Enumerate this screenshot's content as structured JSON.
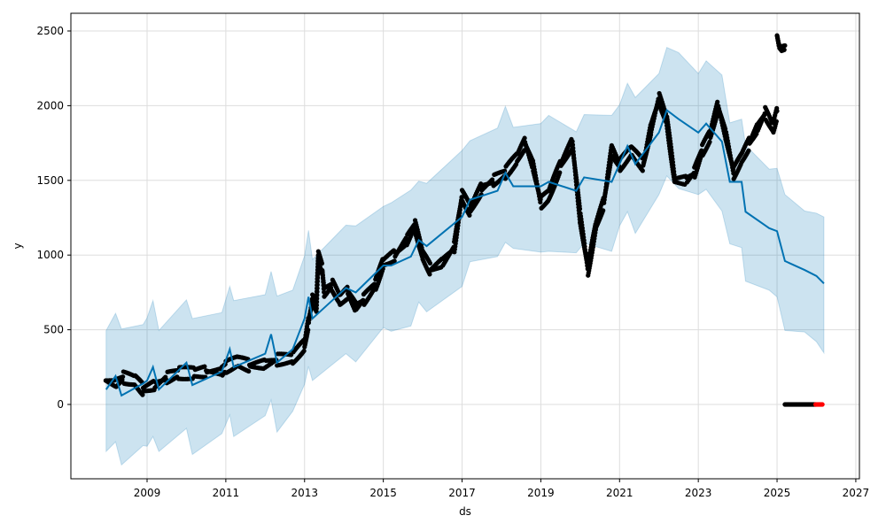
{
  "chart_data": {
    "type": "line",
    "title": "",
    "xlabel": "ds",
    "ylabel": "y",
    "xlim": [
      2007.3,
      2027.2
    ],
    "ylim": [
      -490,
      2600
    ],
    "xticks": [
      "2009",
      "2011",
      "2013",
      "2015",
      "2017",
      "2019",
      "2021",
      "2023",
      "2025",
      "2027"
    ],
    "yticks": [
      "0",
      "500",
      "1000",
      "1500",
      "2000",
      "2500"
    ],
    "grid": true,
    "colors": {
      "forecast": "#0072B2",
      "band": "#0072B2",
      "actual": "#000000",
      "future_actual": "#ff0000"
    },
    "forecast": [
      [
        2007.96,
        100
      ],
      [
        2008.2,
        190
      ],
      [
        2008.35,
        60
      ],
      [
        2008.9,
        140
      ],
      [
        2009.0,
        160
      ],
      [
        2009.15,
        250
      ],
      [
        2009.3,
        100
      ],
      [
        2010.0,
        280
      ],
      [
        2010.15,
        130
      ],
      [
        2010.9,
        220
      ],
      [
        2011.1,
        370
      ],
      [
        2011.2,
        250
      ],
      [
        2012.0,
        340
      ],
      [
        2012.15,
        470
      ],
      [
        2012.3,
        280
      ],
      [
        2012.7,
        370
      ],
      [
        2013.0,
        575
      ],
      [
        2013.1,
        720
      ],
      [
        2013.2,
        575
      ],
      [
        2014.05,
        780
      ],
      [
        2014.3,
        750
      ],
      [
        2015.0,
        930
      ],
      [
        2015.2,
        930
      ],
      [
        2015.7,
        990
      ],
      [
        2015.9,
        1100
      ],
      [
        2016.1,
        1060
      ],
      [
        2017.0,
        1255
      ],
      [
        2017.2,
        1370
      ],
      [
        2017.9,
        1430
      ],
      [
        2018.1,
        1550
      ],
      [
        2018.3,
        1460
      ],
      [
        2019.0,
        1460
      ],
      [
        2019.2,
        1490
      ],
      [
        2019.9,
        1430
      ],
      [
        2020.1,
        1520
      ],
      [
        2020.8,
        1490
      ],
      [
        2021.0,
        1610
      ],
      [
        2021.2,
        1730
      ],
      [
        2021.4,
        1610
      ],
      [
        2022.0,
        1820
      ],
      [
        2022.2,
        1970
      ],
      [
        2022.5,
        1910
      ],
      [
        2023.0,
        1820
      ],
      [
        2023.2,
        1880
      ],
      [
        2023.6,
        1760
      ],
      [
        2023.8,
        1490
      ],
      [
        2024.1,
        1490
      ],
      [
        2024.2,
        1290
      ],
      [
        2024.8,
        1180
      ],
      [
        2025.0,
        1160
      ],
      [
        2025.2,
        960
      ],
      [
        2025.7,
        900
      ],
      [
        2026.0,
        860
      ],
      [
        2026.19,
        810
      ]
    ],
    "band_halfwidth_series": {
      "lower_offset": -440,
      "upper_offset": 420
    },
    "actual": [
      [
        2007.95,
        160
      ],
      [
        2008.2,
        140
      ],
      [
        2008.4,
        180
      ],
      [
        2008.7,
        160
      ],
      [
        2008.9,
        100
      ],
      [
        2009.2,
        130
      ],
      [
        2009.5,
        180
      ],
      [
        2009.8,
        210
      ],
      [
        2010.2,
        210
      ],
      [
        2010.5,
        220
      ],
      [
        2010.9,
        220
      ],
      [
        2011.0,
        250
      ],
      [
        2011.3,
        290
      ],
      [
        2011.6,
        260
      ],
      [
        2012.0,
        270
      ],
      [
        2012.3,
        300
      ],
      [
        2012.7,
        310
      ],
      [
        2013.0,
        400
      ],
      [
        2013.1,
        550
      ],
      [
        2013.2,
        700
      ],
      [
        2013.3,
        650
      ],
      [
        2013.35,
        1000
      ],
      [
        2013.45,
        900
      ],
      [
        2013.5,
        750
      ],
      [
        2013.7,
        800
      ],
      [
        2013.9,
        700
      ],
      [
        2014.1,
        750
      ],
      [
        2014.3,
        650
      ],
      [
        2014.5,
        700
      ],
      [
        2014.8,
        800
      ],
      [
        2015.0,
        950
      ],
      [
        2015.3,
        1000
      ],
      [
        2015.6,
        1100
      ],
      [
        2015.8,
        1200
      ],
      [
        2016.0,
        1000
      ],
      [
        2016.2,
        900
      ],
      [
        2016.5,
        950
      ],
      [
        2016.8,
        1050
      ],
      [
        2017.0,
        1400
      ],
      [
        2017.2,
        1300
      ],
      [
        2017.5,
        1450
      ],
      [
        2017.8,
        1500
      ],
      [
        2018.1,
        1550
      ],
      [
        2018.4,
        1650
      ],
      [
        2018.6,
        1750
      ],
      [
        2018.8,
        1600
      ],
      [
        2019.0,
        1350
      ],
      [
        2019.2,
        1400
      ],
      [
        2019.5,
        1600
      ],
      [
        2019.8,
        1750
      ],
      [
        2020.0,
        1250
      ],
      [
        2020.2,
        900
      ],
      [
        2020.4,
        1200
      ],
      [
        2020.6,
        1350
      ],
      [
        2020.8,
        1700
      ],
      [
        2021.0,
        1600
      ],
      [
        2021.3,
        1700
      ],
      [
        2021.6,
        1600
      ],
      [
        2021.8,
        1850
      ],
      [
        2022.0,
        2050
      ],
      [
        2022.2,
        1900
      ],
      [
        2022.4,
        1500
      ],
      [
        2022.7,
        1500
      ],
      [
        2022.9,
        1550
      ],
      [
        2023.1,
        1700
      ],
      [
        2023.3,
        1800
      ],
      [
        2023.5,
        2000
      ],
      [
        2023.7,
        1800
      ],
      [
        2023.9,
        1550
      ],
      [
        2024.1,
        1650
      ],
      [
        2024.3,
        1750
      ],
      [
        2024.5,
        1850
      ],
      [
        2024.7,
        1950
      ],
      [
        2024.9,
        1850
      ],
      [
        2025.0,
        1950
      ]
    ],
    "actual_spike": [
      [
        2025.0,
        2470
      ],
      [
        2025.05,
        2400
      ],
      [
        2025.1,
        2380
      ],
      [
        2025.2,
        2390
      ]
    ],
    "actual_zero": [
      [
        2025.2,
        0
      ],
      [
        2025.98,
        0
      ]
    ],
    "future_zero": [
      [
        2025.98,
        0
      ],
      [
        2026.15,
        0
      ]
    ]
  }
}
